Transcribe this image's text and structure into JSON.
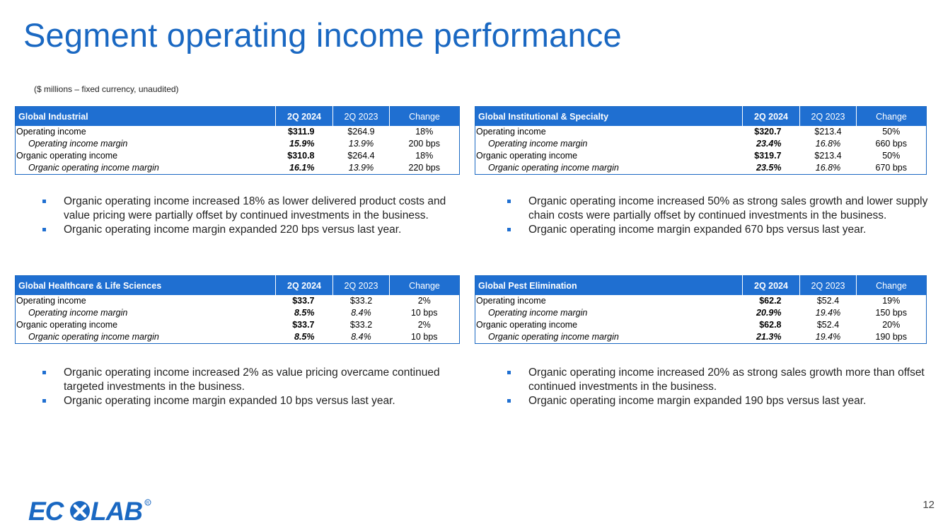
{
  "title": "Segment operating income performance",
  "subtitle": "($ millions – fixed currency, unaudited)",
  "segments": [
    {
      "name": "Global Industrial",
      "col_current": "2Q 2024",
      "col_prior": "2Q 2023",
      "col_change": "Change",
      "rows": [
        {
          "label": "Operating income",
          "current": "$311.9",
          "prior": "$264.9",
          "change": "18%"
        },
        {
          "label": "Operating income margin",
          "current": "15.9%",
          "prior": "13.9%",
          "change": "200 bps"
        },
        {
          "label": "Organic operating income",
          "current": "$310.8",
          "prior": "$264.4",
          "change": "18%"
        },
        {
          "label": "Organic operating income margin",
          "current": "16.1%",
          "prior": "13.9%",
          "change": "220 bps"
        }
      ],
      "bullets": [
        "Organic operating income increased 18% as lower delivered product costs and value pricing were partially offset by continued investments in the business.",
        "Organic operating income margin expanded 220 bps versus last year."
      ]
    },
    {
      "name": "Global Institutional & Specialty",
      "col_current": "2Q 2024",
      "col_prior": "2Q 2023",
      "col_change": "Change",
      "rows": [
        {
          "label": "Operating income",
          "current": "$320.7",
          "prior": "$213.4",
          "change": "50%"
        },
        {
          "label": "Operating income margin",
          "current": "23.4%",
          "prior": "16.8%",
          "change": "660 bps"
        },
        {
          "label": "Organic operating income",
          "current": "$319.7",
          "prior": "$213.4",
          "change": "50%"
        },
        {
          "label": "Organic operating income margin",
          "current": "23.5%",
          "prior": "16.8%",
          "change": "670 bps"
        }
      ],
      "bullets": [
        "Organic operating income increased 50% as strong sales growth and lower supply chain costs were partially offset by continued investments in the business.",
        "Organic operating income margin expanded 670 bps versus last year."
      ]
    },
    {
      "name": "Global Healthcare & Life Sciences",
      "col_current": "2Q 2024",
      "col_prior": "2Q 2023",
      "col_change": "Change",
      "rows": [
        {
          "label": "Operating income",
          "current": "$33.7",
          "prior": "$33.2",
          "change": "2%"
        },
        {
          "label": "Operating income margin",
          "current": "8.5%",
          "prior": "8.4%",
          "change": "10 bps"
        },
        {
          "label": "Organic operating income",
          "current": "$33.7",
          "prior": "$33.2",
          "change": "2%"
        },
        {
          "label": "Organic operating income margin",
          "current": "8.5%",
          "prior": "8.4%",
          "change": "10 bps"
        }
      ],
      "bullets": [
        "Organic operating income increased 2% as value pricing overcame continued targeted investments in the business.",
        "Organic operating income margin expanded 10 bps versus last year."
      ]
    },
    {
      "name": "Global Pest Elimination",
      "col_current": "2Q 2024",
      "col_prior": "2Q 2023",
      "col_change": "Change",
      "rows": [
        {
          "label": "Operating income",
          "current": "$62.2",
          "prior": "$52.4",
          "change": "19%"
        },
        {
          "label": "Operating income margin",
          "current": "20.9%",
          "prior": "19.4%",
          "change": "150 bps"
        },
        {
          "label": "Organic operating income",
          "current": "$62.8",
          "prior": "$52.4",
          "change": "20%"
        },
        {
          "label": "Organic operating income margin",
          "current": "21.3%",
          "prior": "19.4%",
          "change": "190 bps"
        }
      ],
      "bullets": [
        "Organic operating income increased 20% as strong sales growth more than offset continued investments in the business.",
        "Organic operating income margin expanded 190 bps versus last year."
      ]
    }
  ],
  "logo_text": "ECOLAB",
  "page_number": "12",
  "colors": {
    "accent": "#1a68c2",
    "header_fill": "#1f6fd1"
  }
}
